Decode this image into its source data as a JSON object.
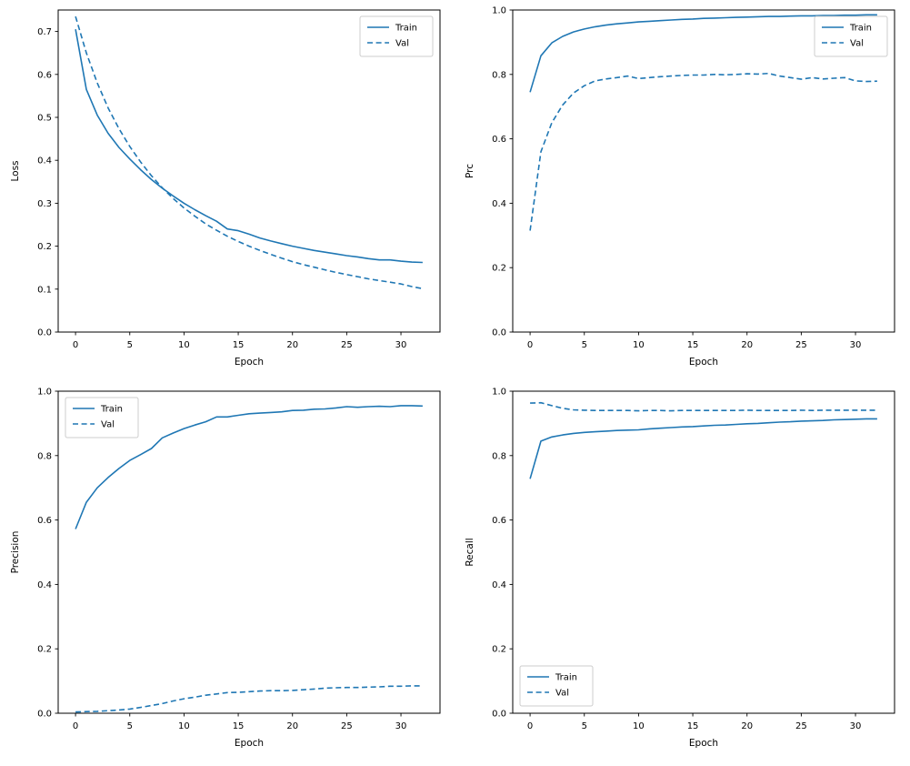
{
  "figure": {
    "background": "#ffffff",
    "accent_color": "#1f77b4"
  },
  "chart_data": [
    {
      "name": "loss",
      "type": "line",
      "title": "",
      "xlabel": "Epoch",
      "ylabel": "Loss",
      "xlim": [
        -1.6,
        33.6
      ],
      "ylim": [
        0.0,
        0.75
      ],
      "xticks": [
        0,
        5,
        10,
        15,
        20,
        25,
        30
      ],
      "yticks": [
        0.0,
        0.1,
        0.2,
        0.3,
        0.4,
        0.5,
        0.6,
        0.7
      ],
      "grid": false,
      "legend_loc": "upper right",
      "x": [
        0,
        1,
        2,
        3,
        4,
        5,
        6,
        7,
        8,
        9,
        10,
        11,
        12,
        13,
        14,
        15,
        16,
        17,
        18,
        19,
        20,
        21,
        22,
        23,
        24,
        25,
        26,
        27,
        28,
        29,
        30,
        31,
        32
      ],
      "series": [
        {
          "name": "Train",
          "style": "solid",
          "color": "#1f77b4",
          "y": [
            0.705,
            0.565,
            0.505,
            0.463,
            0.43,
            0.403,
            0.378,
            0.355,
            0.335,
            0.317,
            0.3,
            0.285,
            0.271,
            0.258,
            0.24,
            0.236,
            0.228,
            0.219,
            0.212,
            0.206,
            0.2,
            0.195,
            0.19,
            0.186,
            0.182,
            0.178,
            0.175,
            0.171,
            0.168,
            0.168,
            0.165,
            0.163,
            0.162
          ]
        },
        {
          "name": "Val",
          "style": "dashed",
          "color": "#1f77b4",
          "y": [
            0.735,
            0.65,
            0.58,
            0.522,
            0.474,
            0.432,
            0.396,
            0.364,
            0.336,
            0.311,
            0.289,
            0.27,
            0.252,
            0.237,
            0.223,
            0.211,
            0.2,
            0.19,
            0.181,
            0.172,
            0.164,
            0.157,
            0.151,
            0.145,
            0.139,
            0.134,
            0.129,
            0.124,
            0.12,
            0.116,
            0.112,
            0.106,
            0.101
          ]
        }
      ]
    },
    {
      "name": "prc",
      "type": "line",
      "title": "",
      "xlabel": "Epoch",
      "ylabel": "Prc",
      "xlim": [
        -1.6,
        33.6
      ],
      "ylim": [
        0.0,
        1.0
      ],
      "xticks": [
        0,
        5,
        10,
        15,
        20,
        25,
        30
      ],
      "yticks": [
        0.0,
        0.2,
        0.4,
        0.6,
        0.8,
        1.0
      ],
      "grid": false,
      "legend_loc": "upper right",
      "x": [
        0,
        1,
        2,
        3,
        4,
        5,
        6,
        7,
        8,
        9,
        10,
        11,
        12,
        13,
        14,
        15,
        16,
        17,
        18,
        19,
        20,
        21,
        22,
        23,
        24,
        25,
        26,
        27,
        28,
        29,
        30,
        31,
        32
      ],
      "series": [
        {
          "name": "Train",
          "style": "solid",
          "color": "#1f77b4",
          "y": [
            0.745,
            0.858,
            0.898,
            0.918,
            0.932,
            0.941,
            0.948,
            0.953,
            0.957,
            0.96,
            0.963,
            0.965,
            0.967,
            0.969,
            0.971,
            0.972,
            0.974,
            0.975,
            0.976,
            0.977,
            0.978,
            0.979,
            0.98,
            0.98,
            0.981,
            0.982,
            0.982,
            0.983,
            0.983,
            0.984,
            0.984,
            0.985,
            0.985
          ]
        },
        {
          "name": "Val",
          "style": "dashed",
          "color": "#1f77b4",
          "y": [
            0.315,
            0.56,
            0.65,
            0.705,
            0.742,
            0.765,
            0.78,
            0.786,
            0.79,
            0.795,
            0.787,
            0.79,
            0.793,
            0.795,
            0.797,
            0.798,
            0.798,
            0.8,
            0.799,
            0.8,
            0.802,
            0.801,
            0.803,
            0.795,
            0.79,
            0.785,
            0.79,
            0.786,
            0.788,
            0.79,
            0.78,
            0.778,
            0.779
          ]
        }
      ]
    },
    {
      "name": "precision",
      "type": "line",
      "title": "",
      "xlabel": "Epoch",
      "ylabel": "Precision",
      "xlim": [
        -1.6,
        33.6
      ],
      "ylim": [
        0.0,
        1.0
      ],
      "xticks": [
        0,
        5,
        10,
        15,
        20,
        25,
        30
      ],
      "yticks": [
        0.0,
        0.2,
        0.4,
        0.6,
        0.8,
        1.0
      ],
      "grid": false,
      "legend_loc": "upper left",
      "x": [
        0,
        1,
        2,
        3,
        4,
        5,
        6,
        7,
        8,
        9,
        10,
        11,
        12,
        13,
        14,
        15,
        16,
        17,
        18,
        19,
        20,
        21,
        22,
        23,
        24,
        25,
        26,
        27,
        28,
        29,
        30,
        31,
        32
      ],
      "series": [
        {
          "name": "Train",
          "style": "solid",
          "color": "#1f77b4",
          "y": [
            0.572,
            0.655,
            0.7,
            0.732,
            0.76,
            0.785,
            0.803,
            0.822,
            0.855,
            0.87,
            0.884,
            0.895,
            0.905,
            0.92,
            0.92,
            0.925,
            0.93,
            0.932,
            0.934,
            0.936,
            0.94,
            0.941,
            0.944,
            0.945,
            0.948,
            0.952,
            0.95,
            0.952,
            0.953,
            0.952,
            0.955,
            0.955,
            0.954
          ]
        },
        {
          "name": "Val",
          "style": "dashed",
          "color": "#1f77b4",
          "y": [
            0.004,
            0.005,
            0.006,
            0.008,
            0.01,
            0.013,
            0.018,
            0.024,
            0.03,
            0.038,
            0.045,
            0.05,
            0.056,
            0.06,
            0.064,
            0.065,
            0.067,
            0.069,
            0.07,
            0.07,
            0.071,
            0.073,
            0.075,
            0.078,
            0.079,
            0.08,
            0.08,
            0.081,
            0.082,
            0.084,
            0.084,
            0.085,
            0.085
          ]
        }
      ]
    },
    {
      "name": "recall",
      "type": "line",
      "title": "",
      "xlabel": "Epoch",
      "ylabel": "Recall",
      "xlim": [
        -1.6,
        33.6
      ],
      "ylim": [
        0.0,
        1.0
      ],
      "xticks": [
        0,
        5,
        10,
        15,
        20,
        25,
        30
      ],
      "yticks": [
        0.0,
        0.2,
        0.4,
        0.6,
        0.8,
        1.0
      ],
      "grid": false,
      "legend_loc": "lower left",
      "x": [
        0,
        1,
        2,
        3,
        4,
        5,
        6,
        7,
        8,
        9,
        10,
        11,
        12,
        13,
        14,
        15,
        16,
        17,
        18,
        19,
        20,
        21,
        22,
        23,
        24,
        25,
        26,
        27,
        28,
        29,
        30,
        31,
        32
      ],
      "series": [
        {
          "name": "Train",
          "style": "solid",
          "color": "#1f77b4",
          "y": [
            0.728,
            0.845,
            0.858,
            0.864,
            0.869,
            0.872,
            0.874,
            0.876,
            0.878,
            0.879,
            0.88,
            0.883,
            0.885,
            0.887,
            0.889,
            0.89,
            0.892,
            0.894,
            0.895,
            0.897,
            0.899,
            0.9,
            0.902,
            0.904,
            0.905,
            0.907,
            0.908,
            0.909,
            0.911,
            0.912,
            0.913,
            0.914,
            0.914
          ]
        },
        {
          "name": "Val",
          "style": "dashed",
          "color": "#1f77b4",
          "y": [
            0.963,
            0.964,
            0.955,
            0.947,
            0.942,
            0.941,
            0.94,
            0.94,
            0.94,
            0.94,
            0.939,
            0.94,
            0.94,
            0.939,
            0.94,
            0.94,
            0.94,
            0.94,
            0.94,
            0.94,
            0.941,
            0.94,
            0.94,
            0.94,
            0.94,
            0.941,
            0.94,
            0.941,
            0.941,
            0.941,
            0.941,
            0.941,
            0.941
          ]
        }
      ]
    }
  ]
}
